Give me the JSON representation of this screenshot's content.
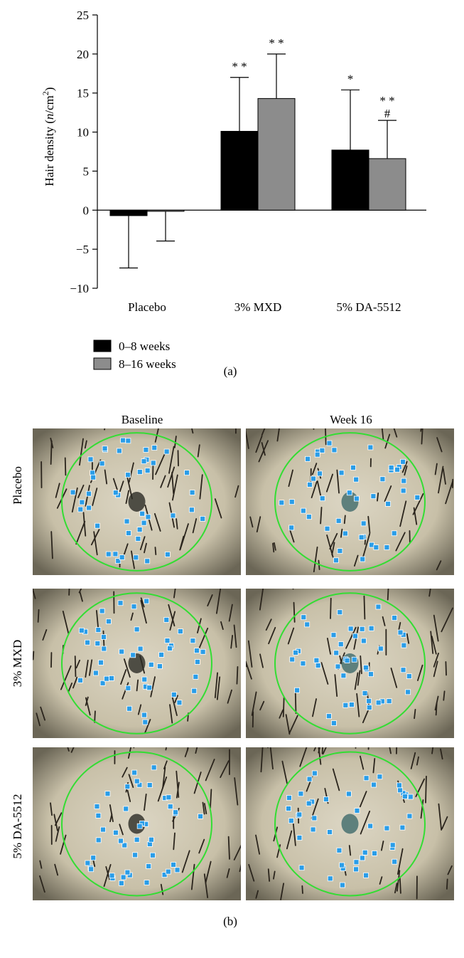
{
  "chart_data": {
    "type": "bar",
    "panel_label": "(a)",
    "categories": [
      "Placebo",
      "3% MXD",
      "5% DA-5512"
    ],
    "ylabel_parts": [
      "Hair density (",
      "n",
      "/cm",
      "2",
      ")"
    ],
    "ylim": [
      -10,
      25
    ],
    "yticks": [
      -10,
      -5,
      0,
      5,
      10,
      15,
      20,
      25
    ],
    "series": [
      {
        "name": "0–8 weeks",
        "color": "#000000",
        "values": [
          -0.7,
          10.1,
          7.7
        ],
        "error": [
          6.7,
          6.9,
          7.7
        ],
        "annotations": [
          "",
          "* *",
          "*"
        ]
      },
      {
        "name": "8–16 weeks",
        "color": "#8c8c8c",
        "values": [
          -0.15,
          14.3,
          6.6
        ],
        "error": [
          3.8,
          5.7,
          4.9
        ],
        "annotations": [
          "",
          "* *",
          "* *\n#"
        ]
      }
    ],
    "legend_position": "bottom-left",
    "grid": false
  },
  "figure_b": {
    "panel_label": "(b)",
    "column_titles": [
      "Baseline",
      "Week 16"
    ],
    "row_titles": [
      "Placebo",
      "3% MXD",
      "5% DA-5512"
    ]
  }
}
